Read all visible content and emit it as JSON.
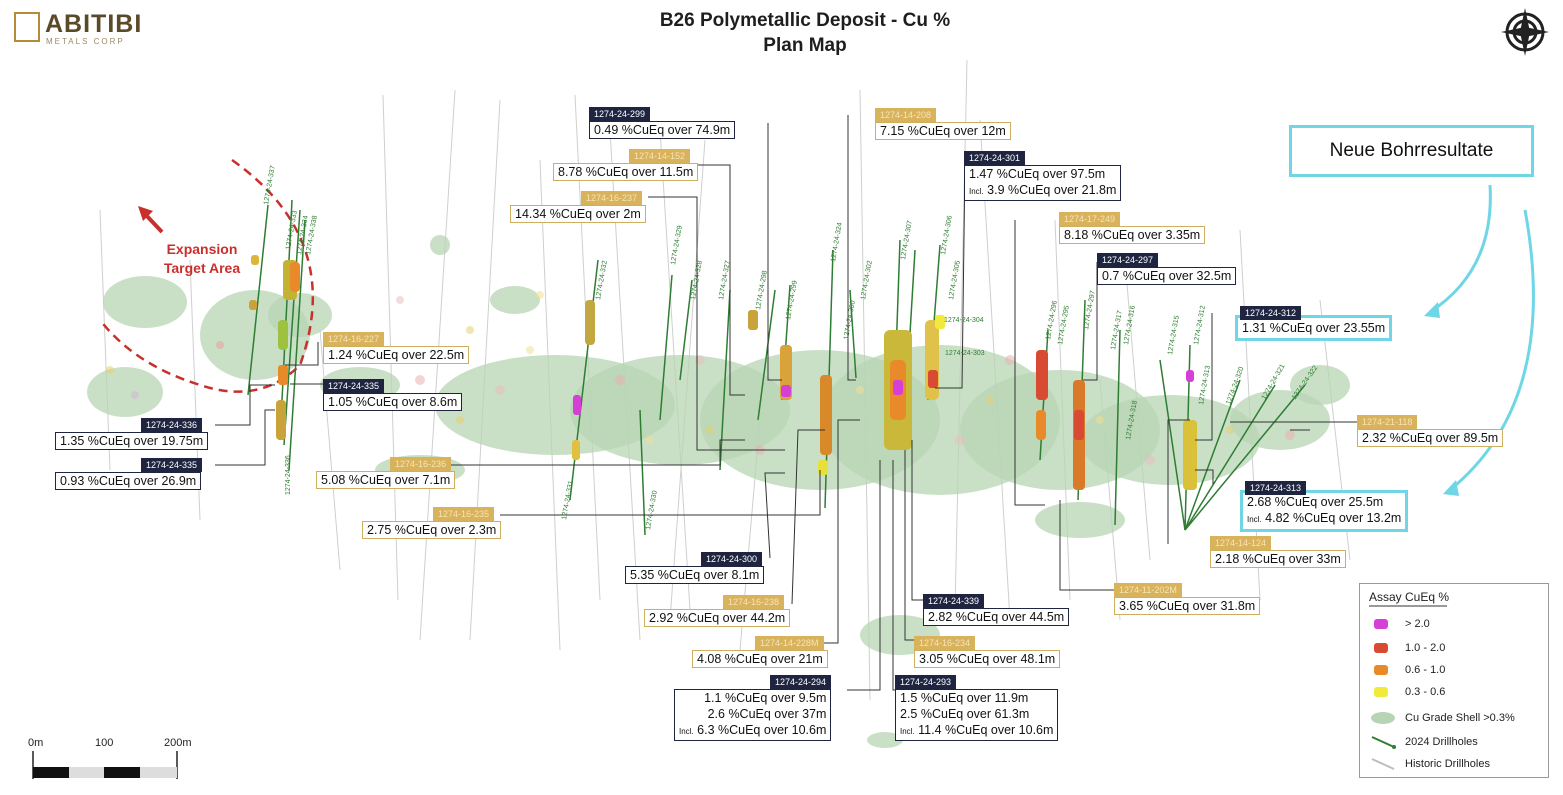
{
  "header": {
    "title_line1": "B26 Polymetallic Deposit - Cu %",
    "title_line2": "Plan Map"
  },
  "logo": {
    "name": "ABITIBI",
    "sub": "METALS CORP"
  },
  "expansion_label": {
    "line1": "Expansion",
    "line2": "Target Area"
  },
  "new_results_label": "Neue Bohrresultate",
  "callouts": {
    "c299": {
      "hole": "1274-24-299",
      "lines": [
        "0.49 %CuEq over 74.9m"
      ]
    },
    "c208": {
      "hole": "1274-14-208",
      "lines": [
        "7.15 %CuEq over 12m"
      ]
    },
    "c152": {
      "hole": "1274-14-152",
      "lines": [
        "8.78 %CuEq over 11.5m"
      ]
    },
    "c237": {
      "hole": "1274-16-237",
      "lines": [
        "14.34 %CuEq over 2m"
      ]
    },
    "c301": {
      "hole": "1274-24-301",
      "lines": [
        "1.47 %CuEq over 97.5m"
      ],
      "incl": "Incl.",
      "incl_line": "3.9 %CuEq over 21.8m"
    },
    "c249": {
      "hole": "1274-17-249",
      "lines": [
        "8.18 %CuEq over 3.35m"
      ]
    },
    "c297": {
      "hole": "1274-24-297",
      "lines": [
        "0.7 %CuEq over 32.5m"
      ]
    },
    "c312": {
      "hole": "1274-24-312",
      "lines": [
        "1.31 %CuEq over 23.55m"
      ]
    },
    "c227": {
      "hole": "1274-16-227",
      "lines": [
        "1.24 %CuEq over 22.5m"
      ]
    },
    "c335a": {
      "hole": "1274-24-335",
      "lines": [
        "1.05 %CuEq over 8.6m"
      ]
    },
    "c336": {
      "hole": "1274-24-336",
      "lines": [
        "1.35 %CuEq over 19.75m"
      ]
    },
    "c335b": {
      "hole": "1274-24-335",
      "lines": [
        "0.93 %CuEq over 26.9m"
      ]
    },
    "c236": {
      "hole": "1274-16-236",
      "lines": [
        "5.08 %CuEq over 7.1m"
      ]
    },
    "c235": {
      "hole": "1274-16-235",
      "lines": [
        "2.75 %CuEq over 2.3m"
      ]
    },
    "c118": {
      "hole": "1274-21-118",
      "lines": [
        "2.32 %CuEq over 89.5m"
      ]
    },
    "c313": {
      "hole": "1274-24-313",
      "lines": [
        "2.68 %CuEq over 25.5m"
      ],
      "incl": "Incl.",
      "incl_line": "4.82 %CuEq over 13.2m"
    },
    "c124": {
      "hole": "1274-14-124",
      "lines": [
        "2.18 %CuEq over 33m"
      ]
    },
    "c300": {
      "hole": "1274-24-300",
      "lines": [
        "5.35 %CuEq over 8.1m"
      ]
    },
    "c238": {
      "hole": "1274-16-238",
      "lines": [
        "2.92 %CuEq over 44.2m"
      ]
    },
    "c339": {
      "hole": "1274-24-339",
      "lines": [
        "2.82 %CuEq over 44.5m"
      ]
    },
    "c202": {
      "hole": "1274-11-202M",
      "lines": [
        "3.65 %CuEq over 31.8m"
      ]
    },
    "c228": {
      "hole": "1274-14-228M",
      "lines": [
        "4.08 %CuEq over 21m"
      ]
    },
    "c234": {
      "hole": "1274-16-234",
      "lines": [
        "3.05 %CuEq over 48.1m"
      ]
    },
    "c294": {
      "hole": "1274-24-294",
      "lines": [
        "1.1 %CuEq over 9.5m",
        "2.6 %CuEq over 37m"
      ],
      "incl": "Incl.",
      "incl_line": "6.3 %CuEq over 10.6m"
    },
    "c293": {
      "hole": "1274-24-293",
      "lines": [
        "1.5 %CuEq over 11.9m",
        "2.5 %CuEq over 61.3m"
      ],
      "incl": "Incl.",
      "incl_line": "11.4 %CuEq over 10.6m"
    }
  },
  "drillhole_labels": [
    "1274-24-337",
    "1274-24-333",
    "1274-24-334",
    "1274-24-338",
    "1274-24-332",
    "1274-24-329",
    "1274-24-328",
    "1274-24-327",
    "1274-24-298",
    "1274-24-299",
    "1274-24-324",
    "1274-24-302",
    "1274-24-300",
    "1274-24-307",
    "1274-24-306",
    "1274-24-305",
    "1274-24-304",
    "1274-24-303",
    "1274-24-296",
    "1274-24-295",
    "1274-24-297",
    "1274-24-317",
    "1274-24-316",
    "1274-24-315",
    "1274-24-312",
    "1274-24-313",
    "1274-24-320",
    "1274-24-321",
    "1274-24-322",
    "1274-24-331",
    "1274-24-330",
    "1274-24-336",
    "1274-24-318"
  ],
  "scale": {
    "labels": [
      "0m",
      "100",
      "200m"
    ]
  },
  "legend": {
    "title": "Assay CuEq %",
    "items": [
      {
        "label": "> 2.0",
        "color": "#d63fd6"
      },
      {
        "label": "1.0 - 2.0",
        "color": "#d84a32"
      },
      {
        "label": "0.6 - 1.0",
        "color": "#e98a2a"
      },
      {
        "label": "0.3 - 0.6",
        "color": "#f2ea3a"
      }
    ],
    "shell_label": "Cu Grade Shell >0.3%",
    "shell_color": "#b7d5b4",
    "drill2024_label": "2024 Drillholes",
    "drill2024_color": "#2e7d32",
    "historic_label": "Historic Drillholes",
    "historic_color": "#bdbdbd"
  }
}
